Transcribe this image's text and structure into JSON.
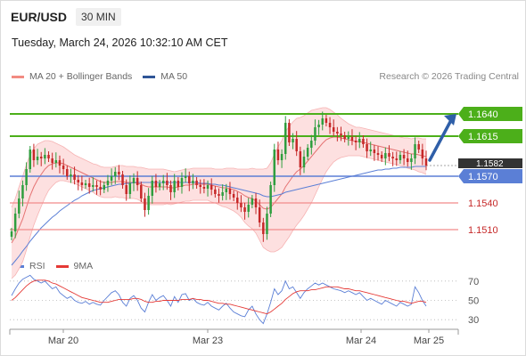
{
  "header": {
    "symbol": "EUR/USD",
    "timeframe": "30 MIN",
    "datetime": "Tuesday, March 24, 2026 10:32:10 AM CET",
    "credit": "Research © 2026 Trading Central"
  },
  "legend_main": [
    {
      "label": "MA 20 + Bollinger Bands",
      "color": "#f28b82"
    },
    {
      "label": "MA 50",
      "color": "#2f5597"
    }
  ],
  "legend_rsi": [
    {
      "label": "RSI",
      "color": "#5b7fd6"
    },
    {
      "label": "9MA",
      "color": "#e53935"
    }
  ],
  "colors": {
    "bull": "#2e9e3e",
    "bear": "#c62828",
    "resistance": "#4caf1a",
    "support": "#f28b8b",
    "pivot": "#5b7fd6",
    "arrow": "#2f5fa8",
    "band": "#fde0e0"
  },
  "chart_data": [
    {
      "type": "candlestick",
      "title": "EUR/USD 30 MIN",
      "ylim": [
        1.1478,
        1.1668
      ],
      "x_ticks": [
        "Mar 20",
        "Mar 23",
        "Mar 24",
        "Mar 25"
      ],
      "levels": [
        {
          "label": "1.1640",
          "value": 1.164,
          "kind": "resistance"
        },
        {
          "label": "1.1615",
          "value": 1.1615,
          "kind": "resistance"
        },
        {
          "label": "1.1570",
          "value": 1.157,
          "kind": "pivot"
        },
        {
          "label": "1.1540",
          "value": 1.154,
          "kind": "support"
        },
        {
          "label": "1.1510",
          "value": 1.151,
          "kind": "support"
        }
      ],
      "last_price": {
        "label": "1.1582",
        "value": 1.1582
      },
      "closes": [
        1.1508,
        1.1528,
        1.1545,
        1.156,
        1.1578,
        1.16,
        1.1588,
        1.1592,
        1.159,
        1.1594,
        1.159,
        1.1585,
        1.1588,
        1.1582,
        1.1578,
        1.157,
        1.1572,
        1.1566,
        1.1563,
        1.156,
        1.1562,
        1.1558,
        1.156,
        1.1558,
        1.1555,
        1.156,
        1.1565,
        1.157,
        1.1575,
        1.1572,
        1.156,
        1.155,
        1.1562,
        1.1568,
        1.156,
        1.1545,
        1.1532,
        1.1548,
        1.1565,
        1.1558,
        1.1562,
        1.1565,
        1.156,
        1.1552,
        1.1565,
        1.1558,
        1.1568,
        1.157,
        1.1562,
        1.1565,
        1.156,
        1.1558,
        1.1556,
        1.156,
        1.1555,
        1.155,
        1.1548,
        1.1552,
        1.1556,
        1.155,
        1.1546,
        1.154,
        1.1535,
        1.153,
        1.1538,
        1.1545,
        1.1535,
        1.1518,
        1.1505,
        1.1528,
        1.156,
        1.16,
        1.1588,
        1.1595,
        1.163,
        1.1608,
        1.1612,
        1.1598,
        1.158,
        1.1592,
        1.1602,
        1.161,
        1.1625,
        1.1628,
        1.1635,
        1.163,
        1.1625,
        1.162,
        1.1618,
        1.1616,
        1.1612,
        1.1614,
        1.161,
        1.1608,
        1.1612,
        1.1606,
        1.1598,
        1.16,
        1.1596,
        1.1594,
        1.159,
        1.1596,
        1.1592,
        1.159,
        1.1588,
        1.1594,
        1.159,
        1.1586,
        1.159,
        1.1606,
        1.16,
        1.159,
        1.1582
      ],
      "ma20": [
        1.1495,
        1.1502,
        1.1512,
        1.1522,
        1.1535,
        1.1548,
        1.1558,
        1.1566,
        1.1572,
        1.1578,
        1.1582,
        1.1584,
        1.1585,
        1.1585,
        1.1584,
        1.1582,
        1.158,
        1.1578,
        1.1576,
        1.1574,
        1.1572,
        1.157,
        1.1568,
        1.1566,
        1.1564,
        1.1563,
        1.1563,
        1.1563,
        1.1564,
        1.1564,
        1.1564,
        1.1563,
        1.1563,
        1.1563,
        1.1562,
        1.1561,
        1.1559,
        1.1558,
        1.1558,
        1.1558,
        1.1558,
        1.1558,
        1.1558,
        1.1557,
        1.1557,
        1.1558,
        1.1559,
        1.156,
        1.156,
        1.1561,
        1.1561,
        1.1561,
        1.1561,
        1.1561,
        1.156,
        1.1559,
        1.1558,
        1.1557,
        1.1557,
        1.1556,
        1.1555,
        1.1553,
        1.1551,
        1.1548,
        1.1546,
        1.1545,
        1.1542,
        1.1538,
        1.1534,
        1.1533,
        1.1535,
        1.154,
        1.1545,
        1.155,
        1.1558,
        1.1564,
        1.157,
        1.1575,
        1.1578,
        1.1582,
        1.1587,
        1.1592,
        1.1597,
        1.1602,
        1.1607,
        1.1611,
        1.1613,
        1.1614,
        1.1614,
        1.1613,
        1.1612,
        1.1611,
        1.161,
        1.1609,
        1.1609,
        1.1608,
        1.1607,
        1.1606,
        1.1605,
        1.1604,
        1.1603,
        1.1602,
        1.1601,
        1.16,
        1.1599,
        1.1598,
        1.1597,
        1.1596,
        1.1595,
        1.1595,
        1.1594,
        1.1593,
        1.1592
      ],
      "ma50": [
        1.147,
        1.1475,
        1.148,
        1.1486,
        1.1491,
        1.1497,
        1.1502,
        1.1507,
        1.1512,
        1.1516,
        1.152,
        1.1524,
        1.1527,
        1.1531,
        1.1534,
        1.1537,
        1.154,
        1.1543,
        1.1545,
        1.1548,
        1.155,
        1.1552,
        1.1554,
        1.1555,
        1.1556,
        1.1557,
        1.1558,
        1.1559,
        1.156,
        1.1561,
        1.1561,
        1.1562,
        1.1562,
        1.1563,
        1.1563,
        1.1563,
        1.1563,
        1.1563,
        1.1563,
        1.1563,
        1.1563,
        1.1563,
        1.1563,
        1.1563,
        1.1563,
        1.1563,
        1.1563,
        1.1563,
        1.1563,
        1.1563,
        1.1563,
        1.1562,
        1.1562,
        1.1562,
        1.1561,
        1.1561,
        1.156,
        1.156,
        1.1559,
        1.1558,
        1.1557,
        1.1556,
        1.1555,
        1.1554,
        1.1553,
        1.1552,
        1.1551,
        1.155,
        1.1548,
        1.1547,
        1.1547,
        1.1548,
        1.1549,
        1.155,
        1.1552,
        1.1553,
        1.1554,
        1.1555,
        1.1556,
        1.1557,
        1.1558,
        1.1559,
        1.156,
        1.1561,
        1.1562,
        1.1563,
        1.1564,
        1.1565,
        1.1566,
        1.1567,
        1.1568,
        1.1569,
        1.157,
        1.1571,
        1.1572,
        1.1573,
        1.1574,
        1.1575,
        1.1576,
        1.1577,
        1.1577,
        1.1578,
        1.1578,
        1.1579,
        1.1579,
        1.158,
        1.158,
        1.158,
        1.158,
        1.1581,
        1.1581,
        1.1581,
        1.1581
      ],
      "bb_half_width": [
        0.004,
        0.0043,
        0.0046,
        0.0048,
        0.0048,
        0.0046,
        0.0043,
        0.004,
        0.0036,
        0.0032,
        0.0028,
        0.0025,
        0.0022,
        0.002,
        0.0019,
        0.0018,
        0.0017,
        0.0016,
        0.0016,
        0.0016,
        0.0016,
        0.0016,
        0.0016,
        0.0017,
        0.0017,
        0.0017,
        0.0017,
        0.0017,
        0.0017,
        0.0018,
        0.0018,
        0.0018,
        0.0018,
        0.0018,
        0.0018,
        0.0019,
        0.002,
        0.002,
        0.002,
        0.002,
        0.002,
        0.002,
        0.0019,
        0.0019,
        0.0018,
        0.0018,
        0.0018,
        0.0018,
        0.0018,
        0.0018,
        0.0018,
        0.0018,
        0.0018,
        0.0018,
        0.0019,
        0.0019,
        0.002,
        0.0021,
        0.0022,
        0.0023,
        0.0024,
        0.0025,
        0.0027,
        0.003,
        0.0032,
        0.0034,
        0.0036,
        0.004,
        0.0044,
        0.0046,
        0.005,
        0.0055,
        0.0058,
        0.006,
        0.0062,
        0.0062,
        0.0061,
        0.006,
        0.0058,
        0.0056,
        0.0054,
        0.0052,
        0.0048,
        0.0044,
        0.004,
        0.0036,
        0.0032,
        0.0028,
        0.0025,
        0.0022,
        0.002,
        0.0018,
        0.0017,
        0.0016,
        0.0016,
        0.0016,
        0.0016,
        0.0016,
        0.0016,
        0.0016,
        0.0016,
        0.0016,
        0.0016,
        0.0016,
        0.0016,
        0.0016,
        0.0016,
        0.0017,
        0.0017,
        0.0018,
        0.0019,
        0.0019,
        0.002
      ]
    },
    {
      "type": "line",
      "title": "RSI",
      "ylim": [
        20,
        80
      ],
      "y_ticks": [
        70,
        50,
        30
      ],
      "series": [
        {
          "name": "RSI",
          "values": [
            55,
            62,
            68,
            72,
            74,
            76,
            72,
            70,
            68,
            70,
            66,
            62,
            64,
            58,
            55,
            52,
            54,
            50,
            48,
            47,
            49,
            46,
            48,
            46,
            45,
            50,
            54,
            58,
            60,
            56,
            48,
            44,
            52,
            55,
            50,
            42,
            38,
            48,
            56,
            50,
            53,
            55,
            50,
            44,
            54,
            48,
            56,
            57,
            50,
            52,
            48,
            46,
            45,
            48,
            44,
            42,
            40,
            44,
            47,
            42,
            38,
            36,
            34,
            33,
            40,
            44,
            36,
            30,
            26,
            36,
            48,
            62,
            56,
            60,
            70,
            62,
            64,
            58,
            52,
            58,
            62,
            65,
            68,
            66,
            68,
            66,
            64,
            62,
            61,
            60,
            58,
            60,
            58,
            56,
            58,
            54,
            50,
            52,
            50,
            48,
            46,
            50,
            48,
            46,
            44,
            48,
            46,
            44,
            46,
            64,
            58,
            50,
            44
          ]
        },
        {
          "name": "9MA",
          "values": [
            50,
            53,
            57,
            61,
            65,
            68,
            70,
            71,
            71,
            71,
            70,
            68,
            67,
            65,
            63,
            61,
            59,
            57,
            55,
            53,
            52,
            51,
            50,
            49,
            48,
            48,
            48,
            49,
            50,
            51,
            51,
            51,
            51,
            52,
            52,
            51,
            49,
            48,
            48,
            49,
            49,
            50,
            50,
            50,
            50,
            50,
            51,
            51,
            51,
            52,
            51,
            51,
            50,
            50,
            49,
            48,
            47,
            47,
            46,
            46,
            45,
            44,
            43,
            42,
            41,
            40,
            39,
            38,
            37,
            36,
            38,
            41,
            44,
            47,
            51,
            54,
            57,
            59,
            60,
            60,
            60,
            61,
            61,
            62,
            63,
            64,
            64,
            64,
            64,
            63,
            62,
            62,
            61,
            60,
            60,
            59,
            58,
            57,
            56,
            55,
            54,
            53,
            52,
            51,
            50,
            49,
            49,
            48,
            47,
            48,
            49,
            49,
            48
          ]
        }
      ]
    }
  ]
}
